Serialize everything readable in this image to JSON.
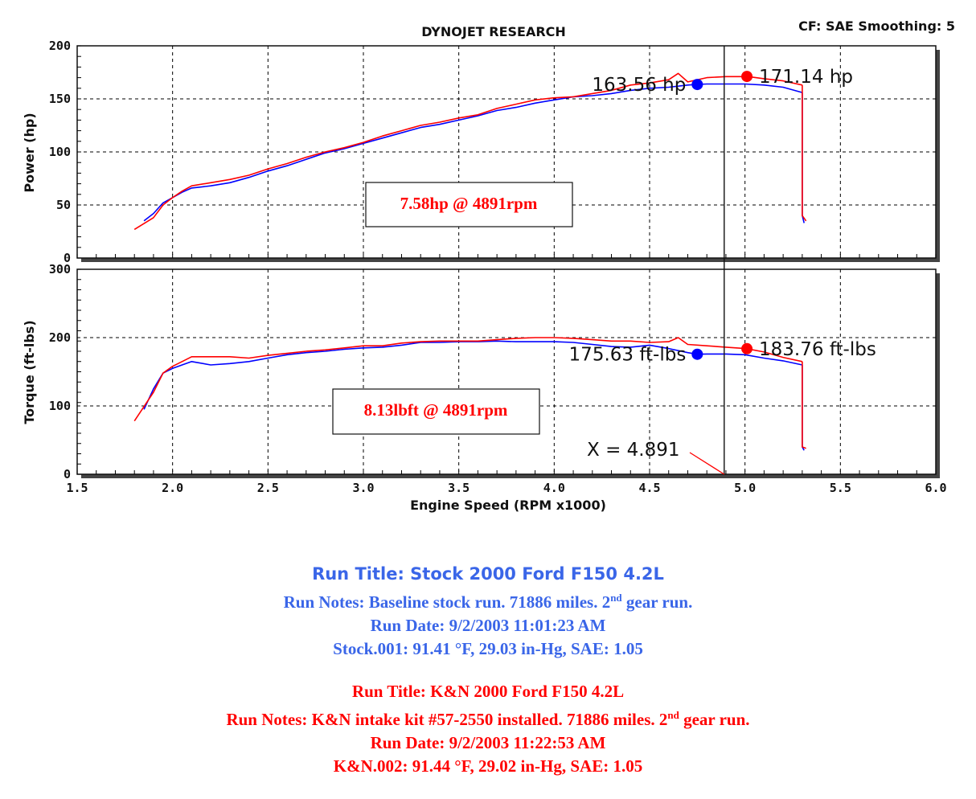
{
  "header": {
    "title": "DYNOJET RESEARCH",
    "settings": "CF: SAE  Smoothing: 5"
  },
  "colors": {
    "stock": "#0000ff",
    "kn": "#ff0000",
    "grid": "#000000"
  },
  "chart_data": [
    {
      "type": "line",
      "panel": "power",
      "ylabel": "Power (hp)",
      "ylim": [
        0,
        200
      ],
      "yticks": [
        "0",
        "50",
        "100",
        "150",
        "200"
      ],
      "xlim": [
        1.5,
        6.0
      ],
      "grid": true,
      "series": [
        {
          "name": "Stock 2000 Ford F150 4.2L",
          "color": "#0000ff",
          "x": [
            1.85,
            1.9,
            1.95,
            2.0,
            2.05,
            2.1,
            2.2,
            2.3,
            2.4,
            2.5,
            2.6,
            2.7,
            2.8,
            2.9,
            3.0,
            3.1,
            3.2,
            3.3,
            3.4,
            3.5,
            3.6,
            3.7,
            3.8,
            3.9,
            4.0,
            4.1,
            4.2,
            4.3,
            4.4,
            4.5,
            4.6,
            4.7,
            4.75,
            4.8,
            4.9,
            5.0,
            5.1,
            5.2,
            5.3
          ],
          "y": [
            35,
            42,
            52,
            57,
            62,
            66,
            68,
            71,
            76,
            82,
            87,
            93,
            99,
            103,
            108,
            113,
            118,
            123,
            126,
            130,
            134,
            139,
            142,
            146,
            149,
            152,
            153,
            155,
            158,
            160,
            161,
            163,
            163.6,
            164,
            164,
            164,
            163,
            161,
            156
          ],
          "pull": [
            [
              5.3,
              156
            ],
            [
              5.3,
              100
            ],
            [
              5.3,
              40
            ],
            [
              5.31,
              33
            ]
          ]
        },
        {
          "name": "K&N 2000 Ford F150 4.2L",
          "color": "#ff0000",
          "x": [
            1.8,
            1.9,
            1.95,
            2.0,
            2.05,
            2.1,
            2.2,
            2.3,
            2.4,
            2.5,
            2.6,
            2.7,
            2.8,
            2.9,
            3.0,
            3.1,
            3.2,
            3.3,
            3.4,
            3.5,
            3.6,
            3.7,
            3.8,
            3.9,
            4.0,
            4.1,
            4.2,
            4.3,
            4.4,
            4.5,
            4.6,
            4.65,
            4.7,
            4.8,
            4.9,
            5.0,
            5.01,
            5.1,
            5.2,
            5.3
          ],
          "y": [
            27,
            38,
            50,
            57,
            63,
            68,
            71,
            74,
            78,
            84,
            89,
            95,
            100,
            104,
            109,
            115,
            120,
            125,
            128,
            132,
            135,
            141,
            145,
            149,
            151,
            152,
            155,
            158,
            163,
            165,
            168,
            174,
            166,
            170,
            171,
            171,
            171.14,
            169,
            167,
            163
          ],
          "pull": [
            [
              5.3,
              163
            ],
            [
              5.3,
              100
            ],
            [
              5.3,
              40
            ],
            [
              5.32,
              35
            ]
          ]
        }
      ],
      "peak_markers": [
        {
          "label": "163.56 hp",
          "x": 4.75,
          "y": 163.56,
          "series": "stock"
        },
        {
          "label": "171.14 hp",
          "x": 5.01,
          "y": 171.14,
          "series": "kn"
        }
      ],
      "box_label": "7.58hp @ 4891rpm"
    },
    {
      "type": "line",
      "panel": "torque",
      "ylabel": "Torque (ft-lbs)",
      "xlabel": "Engine Speed (RPM x1000)",
      "ylim": [
        0,
        300
      ],
      "yticks": [
        "0",
        "100",
        "200",
        "300"
      ],
      "xlim": [
        1.5,
        6.0
      ],
      "xticks": [
        "1.5",
        "2.0",
        "2.5",
        "3.0",
        "3.5",
        "4.0",
        "4.5",
        "5.0",
        "5.5",
        "6.0"
      ],
      "grid": true,
      "series": [
        {
          "name": "Stock 2000 Ford F150 4.2L",
          "color": "#0000ff",
          "x": [
            1.85,
            1.9,
            1.95,
            2.0,
            2.05,
            2.1,
            2.2,
            2.3,
            2.4,
            2.5,
            2.6,
            2.7,
            2.8,
            2.9,
            3.0,
            3.1,
            3.2,
            3.3,
            3.4,
            3.5,
            3.6,
            3.7,
            3.8,
            3.9,
            4.0,
            4.1,
            4.2,
            4.3,
            4.4,
            4.5,
            4.6,
            4.7,
            4.75,
            4.8,
            4.9,
            5.0,
            5.1,
            5.2,
            5.3
          ],
          "y": [
            95,
            125,
            148,
            155,
            160,
            165,
            160,
            162,
            165,
            170,
            175,
            178,
            180,
            183,
            185,
            186,
            189,
            193,
            193,
            194,
            194,
            195,
            194,
            194,
            194,
            193,
            190,
            187,
            186,
            189,
            184,
            178,
            175.6,
            176,
            176,
            175,
            170,
            166,
            160
          ],
          "pull": [
            [
              5.3,
              160
            ],
            [
              5.3,
              100
            ],
            [
              5.3,
              40
            ],
            [
              5.31,
              35
            ]
          ]
        },
        {
          "name": "K&N 2000 Ford F150 4.2L",
          "color": "#ff0000",
          "x": [
            1.8,
            1.9,
            1.95,
            2.0,
            2.05,
            2.1,
            2.2,
            2.3,
            2.4,
            2.5,
            2.6,
            2.7,
            2.8,
            2.9,
            3.0,
            3.1,
            3.2,
            3.3,
            3.4,
            3.5,
            3.6,
            3.7,
            3.8,
            3.9,
            4.0,
            4.1,
            4.2,
            4.3,
            4.4,
            4.5,
            4.6,
            4.65,
            4.7,
            4.8,
            4.9,
            5.0,
            5.01,
            5.1,
            5.2,
            5.3
          ],
          "y": [
            78,
            120,
            148,
            158,
            165,
            172,
            172,
            172,
            170,
            174,
            177,
            180,
            182,
            185,
            188,
            188,
            192,
            194,
            195,
            195,
            195,
            197,
            199,
            200,
            200,
            199,
            197,
            195,
            195,
            193,
            194,
            200,
            190,
            188,
            186,
            184,
            183.76,
            179,
            171,
            165
          ],
          "pull": [
            [
              5.3,
              165
            ],
            [
              5.3,
              100
            ],
            [
              5.3,
              40
            ],
            [
              5.32,
              38
            ]
          ]
        }
      ],
      "peak_markers": [
        {
          "label": "175.63 ft-lbs",
          "x": 4.75,
          "y": 175.63,
          "series": "stock"
        },
        {
          "label": "183.76 ft-lbs",
          "x": 5.01,
          "y": 183.76,
          "series": "kn"
        }
      ],
      "box_label": "8.13lbft @ 4891rpm",
      "cursor_label": "X = 4.891",
      "cursor_x": 4.891
    }
  ],
  "runs": {
    "stock": {
      "title": "Run Title: Stock 2000 Ford F150 4.2L",
      "notes_a": "Run Notes: Baseline stock run. 71886 miles. 2",
      "notes_sup": "nd",
      "notes_b": " gear run.",
      "date": "Run Date: 9/2/2003 11:01:23 AM",
      "conditions": "Stock.001: 91.41 °F, 29.03 in-Hg, SAE: 1.05"
    },
    "kn": {
      "title": "Run Title: K&N 2000 Ford F150 4.2L",
      "notes_a": "Run Notes: K&N intake kit #57-2550 installed. 71886 miles. 2",
      "notes_sup": "nd",
      "notes_b": " gear run.",
      "date": "Run Date: 9/2/2003 11:22:53 AM",
      "conditions": "K&N.002: 91.44 °F, 29.02 in-Hg, SAE: 1.05"
    }
  }
}
